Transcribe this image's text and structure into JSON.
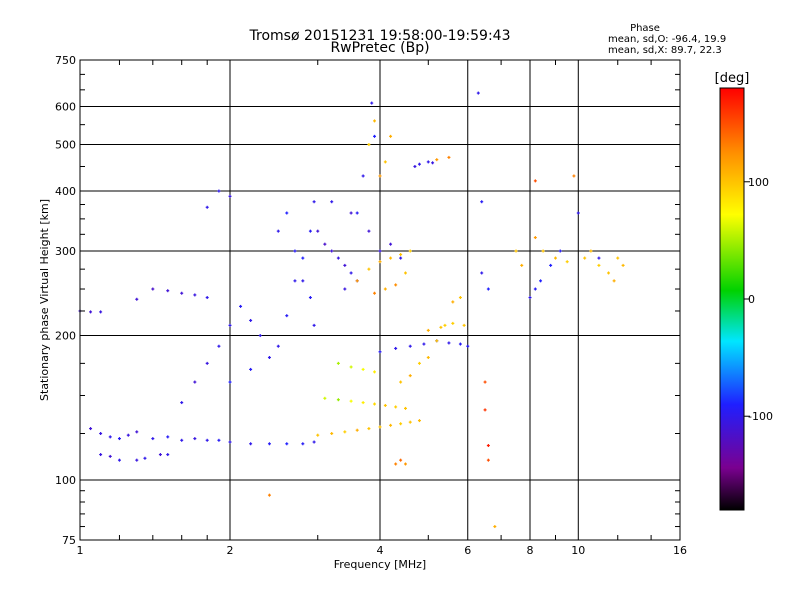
{
  "chart_data": {
    "type": "scatter",
    "title": "Tromsø 20151231 19:58:00-19:59:43",
    "subtitle": "RwPretec (Bp)",
    "xlabel": "Frequency [MHz]",
    "ylabel": "Stationary phase Virtual Height [km]",
    "x_scale": "log",
    "y_scale": "log",
    "xlim": [
      1,
      16
    ],
    "ylim": [
      75,
      750
    ],
    "x_ticks": [
      1,
      2,
      4,
      6,
      8,
      10,
      16
    ],
    "y_ticks": [
      75,
      100,
      200,
      300,
      400,
      500,
      600,
      750
    ],
    "grid": true,
    "stats": {
      "title": "Phase",
      "line_o": "mean, sd,O: -96.4, 19.9",
      "line_x": "mean, sd,X:  89.7, 22.3"
    },
    "colorbar": {
      "label": "[deg]",
      "range": [
        -180,
        180
      ],
      "ticks": [
        100,
        0,
        -100
      ],
      "colors": [
        "#000000",
        "#7a0090",
        "#1f1fff",
        "#00e6ff",
        "#00d200",
        "#ffff00",
        "#ff8c00",
        "#ff0000"
      ]
    },
    "series": [
      {
        "values": [
          [
            1.05,
            128,
            -110
          ],
          [
            1.1,
            125,
            -105
          ],
          [
            1.15,
            123,
            -100
          ],
          [
            1.2,
            122,
            -95
          ],
          [
            1.25,
            124,
            -105
          ],
          [
            1.3,
            126,
            -110
          ],
          [
            1.4,
            122,
            -100
          ],
          [
            1.5,
            123,
            -95
          ],
          [
            1.6,
            121,
            -100
          ],
          [
            1.7,
            122,
            -105
          ],
          [
            1.8,
            121,
            -100
          ],
          [
            1.9,
            121,
            -95
          ],
          [
            2.0,
            120,
            -100
          ],
          [
            2.2,
            119,
            -100
          ],
          [
            2.4,
            119,
            -95
          ],
          [
            2.6,
            119,
            -90
          ],
          [
            2.8,
            119,
            -95
          ],
          [
            2.95,
            120,
            -100
          ],
          [
            1.1,
            113,
            -105
          ],
          [
            1.15,
            112,
            -110
          ],
          [
            1.2,
            110,
            -100
          ],
          [
            1.3,
            110,
            -105
          ],
          [
            1.35,
            111,
            -100
          ],
          [
            1.45,
            113,
            -110
          ],
          [
            1.5,
            113,
            -100
          ],
          [
            1.0,
            225,
            -110
          ],
          [
            1.05,
            224,
            -110
          ],
          [
            1.1,
            224,
            -105
          ],
          [
            1.3,
            238,
            -110
          ],
          [
            1.4,
            250,
            -115
          ],
          [
            1.5,
            248,
            -110
          ],
          [
            1.6,
            245,
            -110
          ],
          [
            1.7,
            243,
            -105
          ],
          [
            1.8,
            240,
            -100
          ],
          [
            1.6,
            145,
            -100
          ],
          [
            1.7,
            160,
            -110
          ],
          [
            1.8,
            175,
            -105
          ],
          [
            1.9,
            190,
            -100
          ],
          [
            2.0,
            210,
            -100
          ],
          [
            2.1,
            230,
            -95
          ],
          [
            2.2,
            215,
            -100
          ],
          [
            2.3,
            200,
            -100
          ],
          [
            2.0,
            160,
            -90
          ],
          [
            2.2,
            170,
            -95
          ],
          [
            2.4,
            180,
            -100
          ],
          [
            2.5,
            190,
            -100
          ],
          [
            2.6,
            220,
            -95
          ],
          [
            2.7,
            260,
            -100
          ],
          [
            2.8,
            290,
            -90
          ],
          [
            2.9,
            330,
            -95
          ],
          [
            2.95,
            380,
            -100
          ],
          [
            2.5,
            330,
            -100
          ],
          [
            2.6,
            360,
            -90
          ],
          [
            2.7,
            300,
            -95
          ],
          [
            2.8,
            260,
            -100
          ],
          [
            2.9,
            240,
            -95
          ],
          [
            2.95,
            210,
            -100
          ],
          [
            3.0,
            330,
            -110
          ],
          [
            3.1,
            310,
            -115
          ],
          [
            3.2,
            300,
            -110
          ],
          [
            3.3,
            290,
            -105
          ],
          [
            3.4,
            280,
            -110
          ],
          [
            3.5,
            270,
            -100
          ],
          [
            3.6,
            260,
            -105
          ],
          [
            1.9,
            400,
            -100
          ],
          [
            2.0,
            390,
            -105
          ],
          [
            1.8,
            370,
            -100
          ],
          [
            3.6,
            360,
            -95
          ],
          [
            3.7,
            430,
            -100
          ],
          [
            3.9,
            520,
            -90
          ],
          [
            3.85,
            610,
            -100
          ],
          [
            4.0,
            185,
            -95
          ],
          [
            4.3,
            188,
            -100
          ],
          [
            4.6,
            190,
            -100
          ],
          [
            4.9,
            192,
            -100
          ],
          [
            5.2,
            195,
            -95
          ],
          [
            5.5,
            193,
            -100
          ],
          [
            5.8,
            192,
            -95
          ],
          [
            6.0,
            190,
            -95
          ],
          [
            4.7,
            450,
            -105
          ],
          [
            4.8,
            455,
            -100
          ],
          [
            5.0,
            460,
            -100
          ],
          [
            5.1,
            458,
            -105
          ],
          [
            6.4,
            270,
            -100
          ],
          [
            6.6,
            250,
            -90
          ],
          [
            6.3,
            640,
            -100
          ],
          [
            6.4,
            380,
            -95
          ],
          [
            8.0,
            240,
            -100
          ],
          [
            8.2,
            250,
            -95
          ],
          [
            8.4,
            260,
            -90
          ],
          [
            8.8,
            280,
            -90
          ],
          [
            9.2,
            300,
            -95
          ],
          [
            10.0,
            360,
            -100
          ],
          [
            11.0,
            290,
            -100
          ],
          [
            3.2,
            380,
            -100
          ],
          [
            3.4,
            250,
            -105
          ],
          [
            3.5,
            360,
            -110
          ],
          [
            3.8,
            330,
            -110
          ],
          [
            4.0,
            300,
            -105
          ],
          [
            4.2,
            310,
            -110
          ],
          [
            4.4,
            290,
            -100
          ]
        ]
      },
      {
        "values": [
          [
            3.0,
            124,
            100
          ],
          [
            3.2,
            125,
            105
          ],
          [
            3.4,
            126,
            95
          ],
          [
            3.6,
            127,
            110
          ],
          [
            3.8,
            128,
            100
          ],
          [
            4.0,
            129,
            100
          ],
          [
            4.2,
            130,
            105
          ],
          [
            4.4,
            131,
            95
          ],
          [
            4.6,
            132,
            100
          ],
          [
            4.8,
            133,
            105
          ],
          [
            3.1,
            148,
            60
          ],
          [
            3.3,
            147,
            45
          ],
          [
            3.5,
            146,
            70
          ],
          [
            3.7,
            145,
            80
          ],
          [
            3.9,
            144,
            90
          ],
          [
            4.1,
            143,
            100
          ],
          [
            4.3,
            142,
            95
          ],
          [
            4.5,
            141,
            100
          ],
          [
            3.6,
            260,
            120
          ],
          [
            3.8,
            275,
            100
          ],
          [
            4.0,
            285,
            110
          ],
          [
            4.2,
            290,
            105
          ],
          [
            4.4,
            295,
            100
          ],
          [
            4.6,
            300,
            95
          ],
          [
            3.9,
            245,
            130
          ],
          [
            4.1,
            250,
            110
          ],
          [
            4.3,
            255,
            125
          ],
          [
            4.5,
            270,
            100
          ],
          [
            4.4,
            160,
            100
          ],
          [
            4.6,
            165,
            110
          ],
          [
            4.8,
            175,
            95
          ],
          [
            5.0,
            180,
            105
          ],
          [
            5.2,
            195,
            100
          ],
          [
            5.4,
            210,
            95
          ],
          [
            5.0,
            205,
            110
          ],
          [
            5.3,
            208,
            100
          ],
          [
            5.6,
            212,
            95
          ],
          [
            5.9,
            210,
            100
          ],
          [
            5.6,
            235,
            110
          ],
          [
            5.8,
            240,
            100
          ],
          [
            3.3,
            175,
            50
          ],
          [
            3.5,
            172,
            60
          ],
          [
            3.7,
            170,
            70
          ],
          [
            3.9,
            168,
            80
          ],
          [
            4.0,
            430,
            120
          ],
          [
            4.1,
            460,
            100
          ],
          [
            4.2,
            520,
            110
          ],
          [
            3.8,
            500,
            95
          ],
          [
            3.9,
            560,
            105
          ],
          [
            4.3,
            108,
            130
          ],
          [
            4.5,
            108,
            120
          ],
          [
            4.4,
            110,
            140
          ],
          [
            6.5,
            160,
            150
          ],
          [
            6.5,
            140,
            160
          ],
          [
            6.6,
            118,
            170
          ],
          [
            6.6,
            110,
            150
          ],
          [
            7.5,
            300,
            100
          ],
          [
            7.7,
            280,
            110
          ],
          [
            8.2,
            320,
            120
          ],
          [
            8.5,
            300,
            100
          ],
          [
            9.0,
            290,
            105
          ],
          [
            9.5,
            285,
            95
          ],
          [
            10.3,
            290,
            100
          ],
          [
            10.6,
            300,
            105
          ],
          [
            11.0,
            280,
            95
          ],
          [
            11.5,
            270,
            100
          ],
          [
            11.8,
            260,
            110
          ],
          [
            12.0,
            290,
            100
          ],
          [
            12.3,
            280,
            105
          ],
          [
            5.5,
            470,
            130
          ],
          [
            5.2,
            465,
            120
          ],
          [
            2.4,
            93,
            130
          ],
          [
            6.8,
            80,
            110
          ],
          [
            8.2,
            420,
            150
          ],
          [
            9.8,
            430,
            130
          ]
        ]
      }
    ]
  }
}
